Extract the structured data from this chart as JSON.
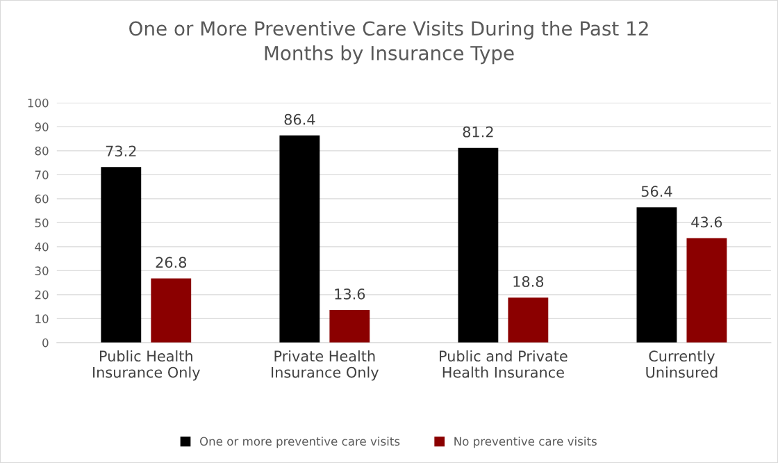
{
  "chart_data": {
    "type": "bar",
    "title": "One or More Preventive Care Visits During the Past 12\nMonths by Insurance Type",
    "categories": [
      "Public Health\nInsurance Only",
      "Private Health\nInsurance Only",
      "Public and Private\nHealth Insurance",
      "Currently\nUninsured"
    ],
    "series": [
      {
        "name": "One or more preventive care visits",
        "color": "#000000",
        "values": [
          73.2,
          86.4,
          81.2,
          56.4
        ]
      },
      {
        "name": "No preventive care visits",
        "color": "#8b0000",
        "values": [
          26.8,
          13.6,
          18.8,
          43.6
        ]
      }
    ],
    "ylim": [
      0,
      100
    ],
    "yticks": [
      0,
      10,
      20,
      30,
      40,
      50,
      60,
      70,
      80,
      90,
      100
    ],
    "grid": "y",
    "legend": "bottom",
    "data_labels": true
  }
}
